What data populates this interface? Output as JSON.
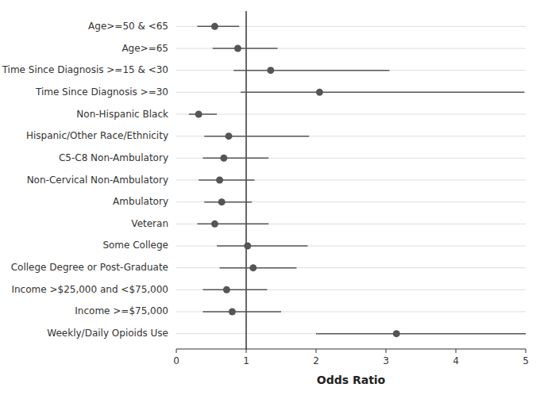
{
  "chart_data": {
    "type": "forest",
    "orientation": "horizontal",
    "categories": [
      "Age>=50 & <65",
      "Age>=65",
      "Time Since Diagnosis >=15 & <30",
      "Time Since Diagnosis >=30",
      "Non-Hispanic Black",
      "Hispanic/Other Race/Ethnicity",
      "C5-C8 Non-Ambulatory",
      "Non-Cervical Non-Ambulatory",
      "Ambulatory",
      "Veteran",
      "Some College",
      "College Degree or Post-Graduate",
      "Income >$25,000 and <$75,000",
      "Income >=$75,000",
      "Weekly/Daily Opioids Use"
    ],
    "values": [
      0.55,
      0.88,
      1.35,
      2.05,
      0.32,
      0.75,
      0.68,
      0.62,
      0.65,
      0.55,
      1.02,
      1.1,
      0.72,
      0.8,
      3.15
    ],
    "ci_low": [
      0.3,
      0.52,
      0.82,
      0.92,
      0.18,
      0.4,
      0.38,
      0.32,
      0.4,
      0.3,
      0.58,
      0.62,
      0.38,
      0.38,
      2.0
    ],
    "ci_high": [
      0.9,
      1.45,
      3.05,
      4.98,
      0.58,
      1.9,
      1.32,
      1.12,
      1.08,
      1.32,
      1.88,
      1.72,
      1.3,
      1.5,
      5.0
    ],
    "x_label": "Odds Ratio",
    "xlim": [
      0,
      5.0
    ],
    "xticks": [
      0,
      1,
      2,
      3,
      4,
      5
    ],
    "reference_x": 1.0,
    "grid": true,
    "color": "#555555"
  }
}
